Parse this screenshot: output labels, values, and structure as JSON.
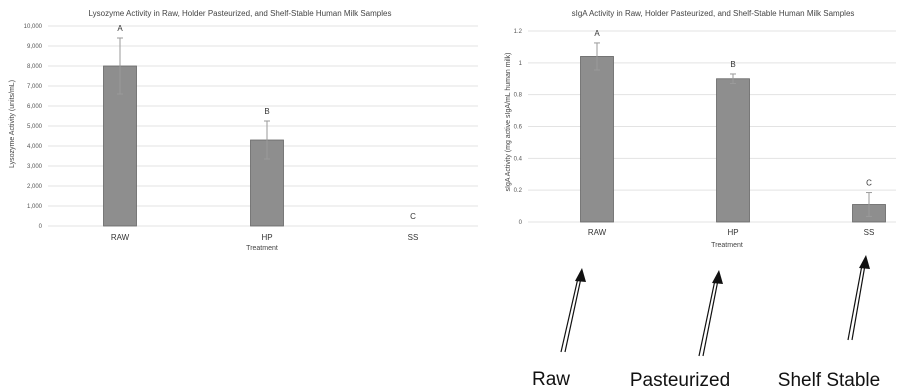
{
  "chart_data": [
    {
      "type": "bar",
      "title": "Lysozyme Activity in Raw, Holder Pasteurized, and Shelf-Stable Human Milk Samples",
      "xlabel": "Treatment",
      "ylabel": "Lysozyme Activity (units/mL)",
      "categories": [
        "RAW",
        "HP",
        "SS"
      ],
      "values": [
        8000,
        4300,
        0
      ],
      "errors": [
        1400,
        950,
        0
      ],
      "significance": [
        "A",
        "B",
        "C"
      ],
      "ylim": [
        0,
        10000
      ],
      "yticks": [
        "0",
        "1,000",
        "2,000",
        "3,000",
        "4,000",
        "5,000",
        "6,000",
        "7,000",
        "8,000",
        "9,000",
        "10,000"
      ],
      "grid": true
    },
    {
      "type": "bar",
      "title": "sIgA Activity in Raw, Holder Pasteurized, and Shelf-Stable Human Milk Samples",
      "xlabel": "Treatment",
      "ylabel": "sIgA Activity (mg active sIgA/mL human milk)",
      "categories": [
        "RAW",
        "HP",
        "SS"
      ],
      "values": [
        1.04,
        0.9,
        0.11
      ],
      "errors": [
        0.085,
        0.03,
        0.075
      ],
      "significance": [
        "A",
        "B",
        "C"
      ],
      "ylim": [
        0,
        1.2
      ],
      "yticks": [
        "0",
        "0.2",
        "0.4",
        "0.6",
        "0.8",
        "1",
        "1.2"
      ],
      "grid": true
    }
  ],
  "annotations": [
    "Raw",
    "Pasteurized",
    "Shelf Stable"
  ],
  "colors": {
    "bar": "#8e8e8e",
    "grid": "#e3e3e3",
    "arrow": "#111111"
  }
}
